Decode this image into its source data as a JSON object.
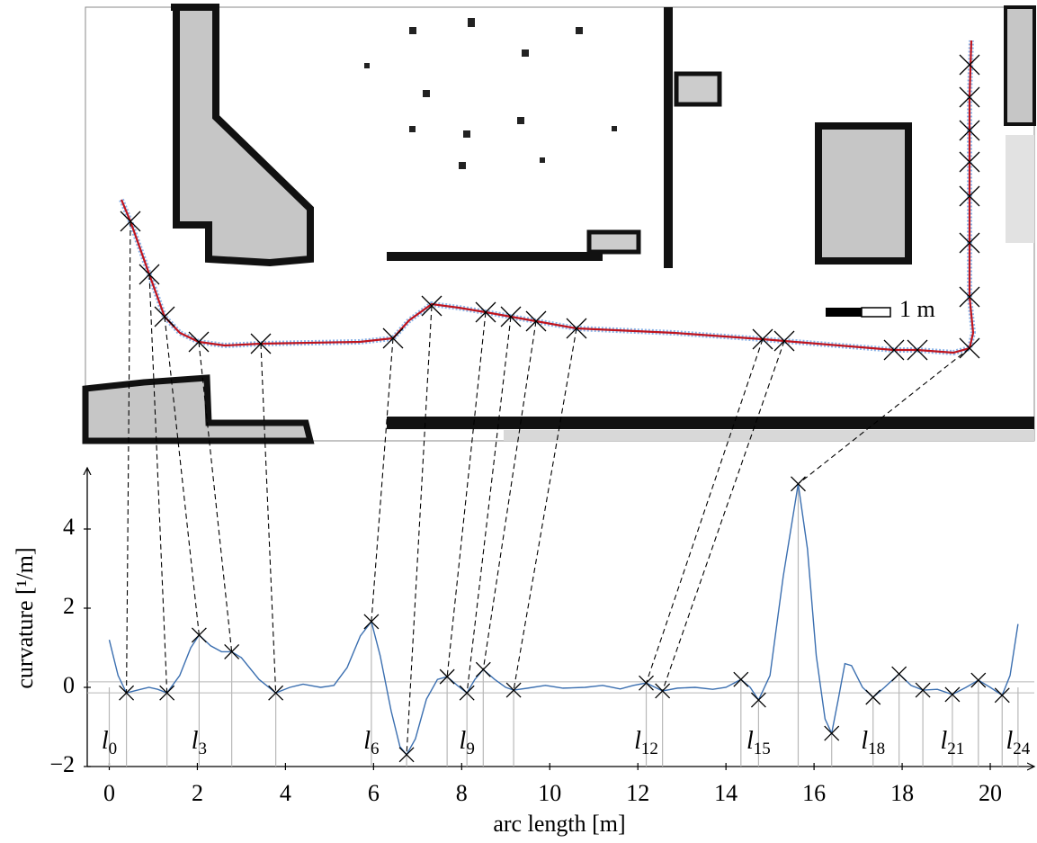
{
  "map": {
    "scale_label": "1 m"
  },
  "chart_data": {
    "type": "line",
    "x_label": "arc length [m]",
    "y_label": "curvature [¹/m]",
    "xlim": [
      -0.5,
      21
    ],
    "ylim": [
      -2,
      5.5
    ],
    "xticks": [
      0,
      2,
      4,
      6,
      8,
      10,
      12,
      14,
      16,
      18,
      20
    ],
    "yticks": [
      {
        "value": -2,
        "label": "−2"
      },
      0,
      2,
      4
    ],
    "threshold_lines": [
      0.14,
      -0.14
    ],
    "x": [
      0,
      0.2,
      0.39,
      0.6,
      0.9,
      1.1,
      1.31,
      1.6,
      1.85,
      2.04,
      2.3,
      2.55,
      2.78,
      3.0,
      3.4,
      3.78,
      4.1,
      4.4,
      4.8,
      5.1,
      5.4,
      5.7,
      5.95,
      6.15,
      6.4,
      6.6,
      6.75,
      6.95,
      7.2,
      7.45,
      7.67,
      7.9,
      8.12,
      8.3,
      8.49,
      8.75,
      9.0,
      9.18,
      9.5,
      9.9,
      10.3,
      10.8,
      11.2,
      11.6,
      11.9,
      12.19,
      12.56,
      12.9,
      13.3,
      13.7,
      14.0,
      14.34,
      14.55,
      14.74,
      15.0,
      15.3,
      15.64,
      15.85,
      16.05,
      16.25,
      16.4,
      16.55,
      16.7,
      16.85,
      17.1,
      17.34,
      17.6,
      17.93,
      18.2,
      18.47,
      18.8,
      19.14,
      19.45,
      19.73,
      20.0,
      20.27,
      20.45,
      20.63
    ],
    "series": [
      {
        "color": "#3b6fb0",
        "values": [
          1.2,
          0.3,
          -0.14,
          -0.08,
          0.0,
          -0.05,
          -0.14,
          0.3,
          1.0,
          1.32,
          1.05,
          0.9,
          0.9,
          0.75,
          0.2,
          -0.14,
          0.0,
          0.08,
          0.0,
          0.05,
          0.5,
          1.3,
          1.66,
          0.8,
          -0.6,
          -1.5,
          -1.7,
          -1.3,
          -0.3,
          0.2,
          0.27,
          0.05,
          -0.14,
          0.2,
          0.45,
          0.2,
          0.0,
          -0.07,
          -0.02,
          0.05,
          -0.02,
          0.0,
          0.05,
          -0.04,
          0.05,
          0.11,
          -0.09,
          -0.02,
          0.0,
          -0.05,
          0.0,
          0.2,
          0.0,
          -0.32,
          0.3,
          2.8,
          5.14,
          3.5,
          0.8,
          -0.8,
          -1.16,
          -0.3,
          0.6,
          0.55,
          0.0,
          -0.25,
          0.0,
          0.34,
          0.05,
          -0.07,
          -0.05,
          -0.18,
          0.0,
          0.18,
          0.0,
          -0.2,
          0.3,
          1.6
        ]
      }
    ],
    "landmarks": {
      "x": [
        0,
        0.39,
        1.31,
        2.04,
        2.78,
        3.78,
        5.95,
        6.75,
        7.67,
        8.12,
        8.49,
        9.18,
        12.19,
        12.56,
        14.34,
        14.74,
        15.64,
        16.4,
        17.34,
        17.93,
        18.47,
        19.14,
        19.73,
        20.27,
        20.63
      ],
      "y": [
        null,
        -0.14,
        -0.14,
        1.32,
        0.9,
        -0.14,
        1.66,
        -1.7,
        0.27,
        -0.14,
        0.45,
        -0.07,
        0.11,
        -0.09,
        0.2,
        -0.32,
        5.14,
        -1.16,
        -0.25,
        0.34,
        -0.07,
        -0.18,
        0.18,
        -0.2,
        null
      ],
      "labels": [
        {
          "text": "l",
          "sub": "0"
        },
        null,
        null,
        {
          "text": "l",
          "sub": "3"
        },
        null,
        null,
        {
          "text": "l",
          "sub": "6"
        },
        null,
        null,
        {
          "text": "l",
          "sub": "9"
        },
        null,
        null,
        {
          "text": "l",
          "sub": "12"
        },
        null,
        null,
        {
          "text": "l",
          "sub": "15"
        },
        null,
        null,
        {
          "text": "l",
          "sub": "18"
        },
        null,
        null,
        {
          "text": "l",
          "sub": "21"
        },
        null,
        null,
        {
          "text": "l",
          "sub": "24"
        }
      ]
    }
  }
}
